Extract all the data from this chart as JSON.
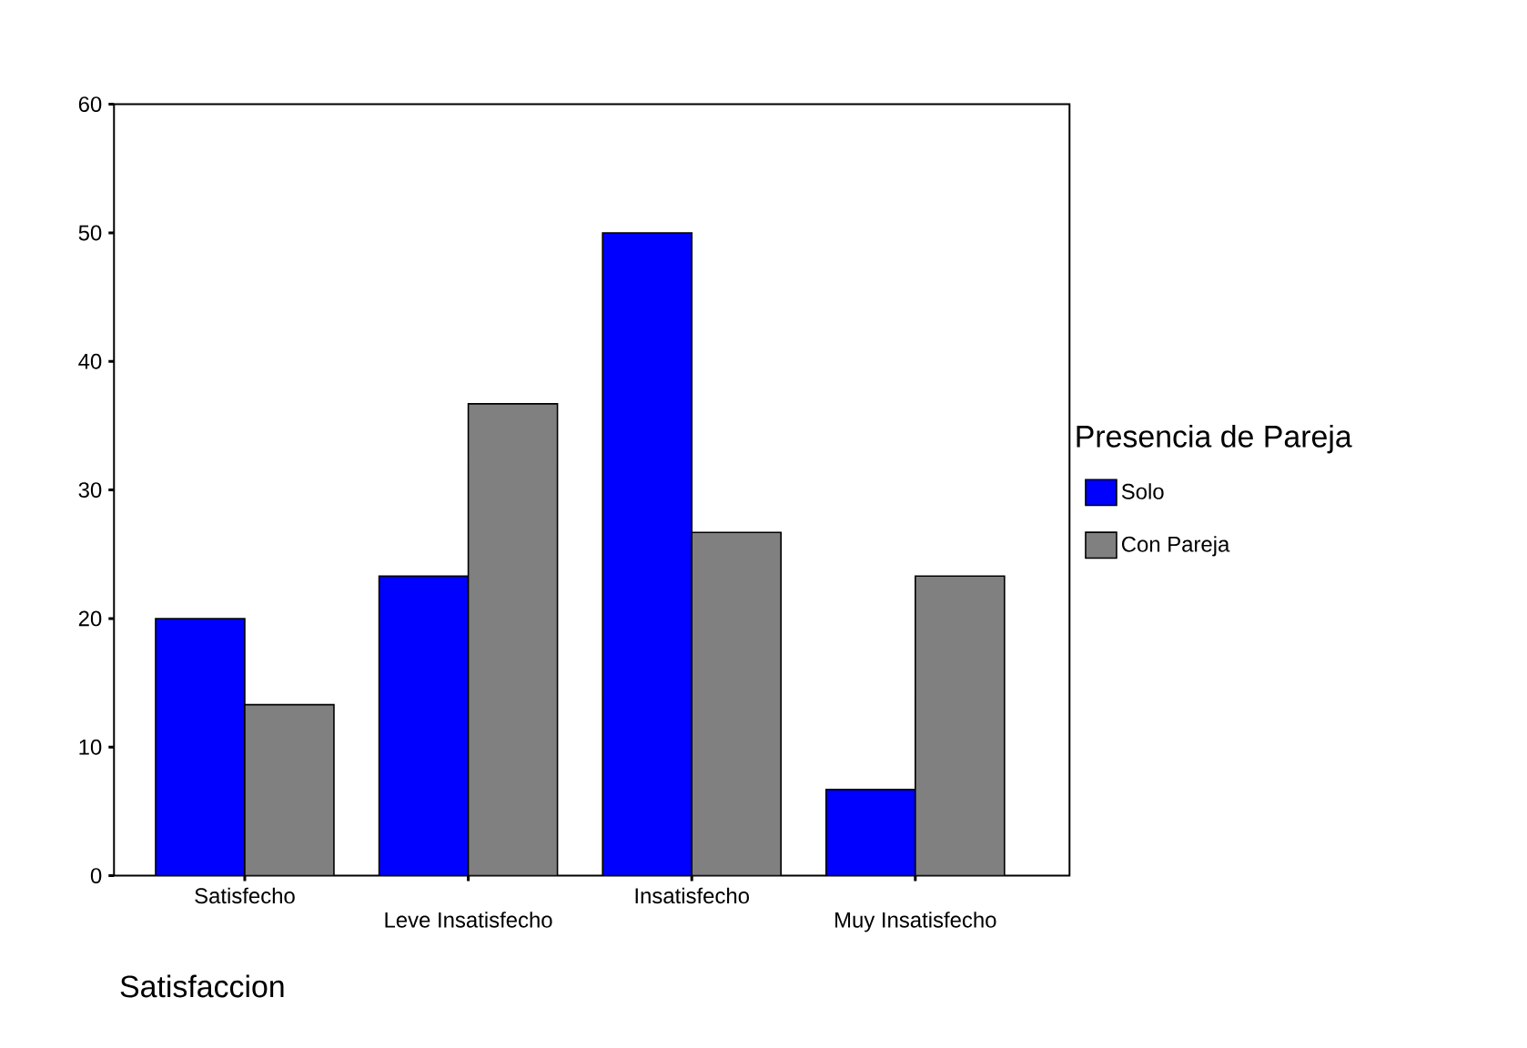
{
  "chart_data": {
    "type": "bar",
    "xlabel": "Satisfaccion",
    "legend_title": "Presencia de Pareja",
    "legend": "right",
    "grid": false,
    "categories": [
      "Satisfecho",
      "Leve Insatisfecho",
      "Insatisfecho",
      "Muy Insatisfecho"
    ],
    "series": [
      {
        "name": "Solo",
        "color": "#0000ff",
        "values": [
          20,
          23.3,
          50,
          6.7
        ]
      },
      {
        "name": "Con Pareja",
        "color": "#808080",
        "values": [
          13.3,
          36.7,
          26.7,
          23.3
        ]
      }
    ],
    "ylim": [
      0,
      60
    ],
    "yticks": [
      0,
      10,
      20,
      30,
      40,
      50,
      60
    ]
  }
}
